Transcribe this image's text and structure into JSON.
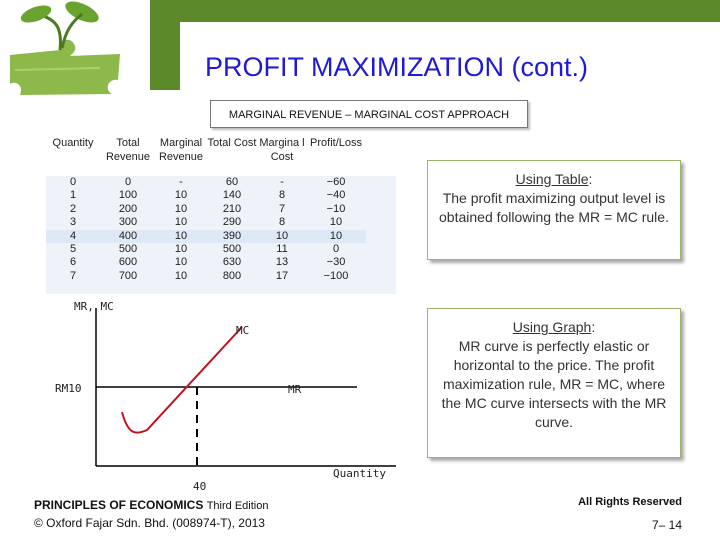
{
  "slide": {
    "title": "PROFIT MAXIMIZATION (cont.)",
    "subtitle": "MARGINAL REVENUE – MARGINAL COST APPROACH"
  },
  "table": {
    "headers": [
      "Quantity",
      "Total Revenue",
      "Marginal Revenue",
      "Total Cost",
      "Margina l Cost",
      "Profit/Loss"
    ],
    "rows": [
      [
        "0",
        "0",
        "-",
        "60",
        "-",
        "−60"
      ],
      [
        "1",
        "100",
        "10",
        "140",
        "8",
        "−40"
      ],
      [
        "2",
        "200",
        "10",
        "210",
        "7",
        "−10"
      ],
      [
        "3",
        "300",
        "10",
        "290",
        "8",
        "10"
      ],
      [
        "4",
        "400",
        "10",
        "390",
        "10",
        "10"
      ],
      [
        "5",
        "500",
        "10",
        "500",
        "11",
        "0"
      ],
      [
        "6",
        "600",
        "10",
        "630",
        "13",
        "−30"
      ],
      [
        "7",
        "700",
        "10",
        "800",
        "17",
        "−100"
      ]
    ],
    "highlighted_row": 4
  },
  "callouts": {
    "table": {
      "heading": "Using Table",
      "text": "The profit maximizing output level is obtained following the MR = MC rule."
    },
    "graph": {
      "heading": "Using Graph",
      "text": "MR curve is perfectly elastic or horizontal to the price. The profit maximization rule, MR = MC, where the MC curve intersects with the MR curve."
    }
  },
  "graph": {
    "y_axis_label": "MR, MC",
    "x_axis_label": "Quantity",
    "mc_label": "MC",
    "mr_label": "MR",
    "price_label": "RM10",
    "quantity_label": "40"
  },
  "footer": {
    "book_title": "PRINCIPLES OF ECONOMICS",
    "edition": "Third Edition",
    "publisher": "© Oxford Fajar Sdn. Bhd. (008974-T), 2013",
    "rights": "All Rights Reserved",
    "page": "7– 14"
  },
  "colors": {
    "header_green": "#5c8a2a",
    "title_blue": "#1f1ad6",
    "arrow_red": "#e8274b",
    "curve_red": "#c1121f"
  }
}
